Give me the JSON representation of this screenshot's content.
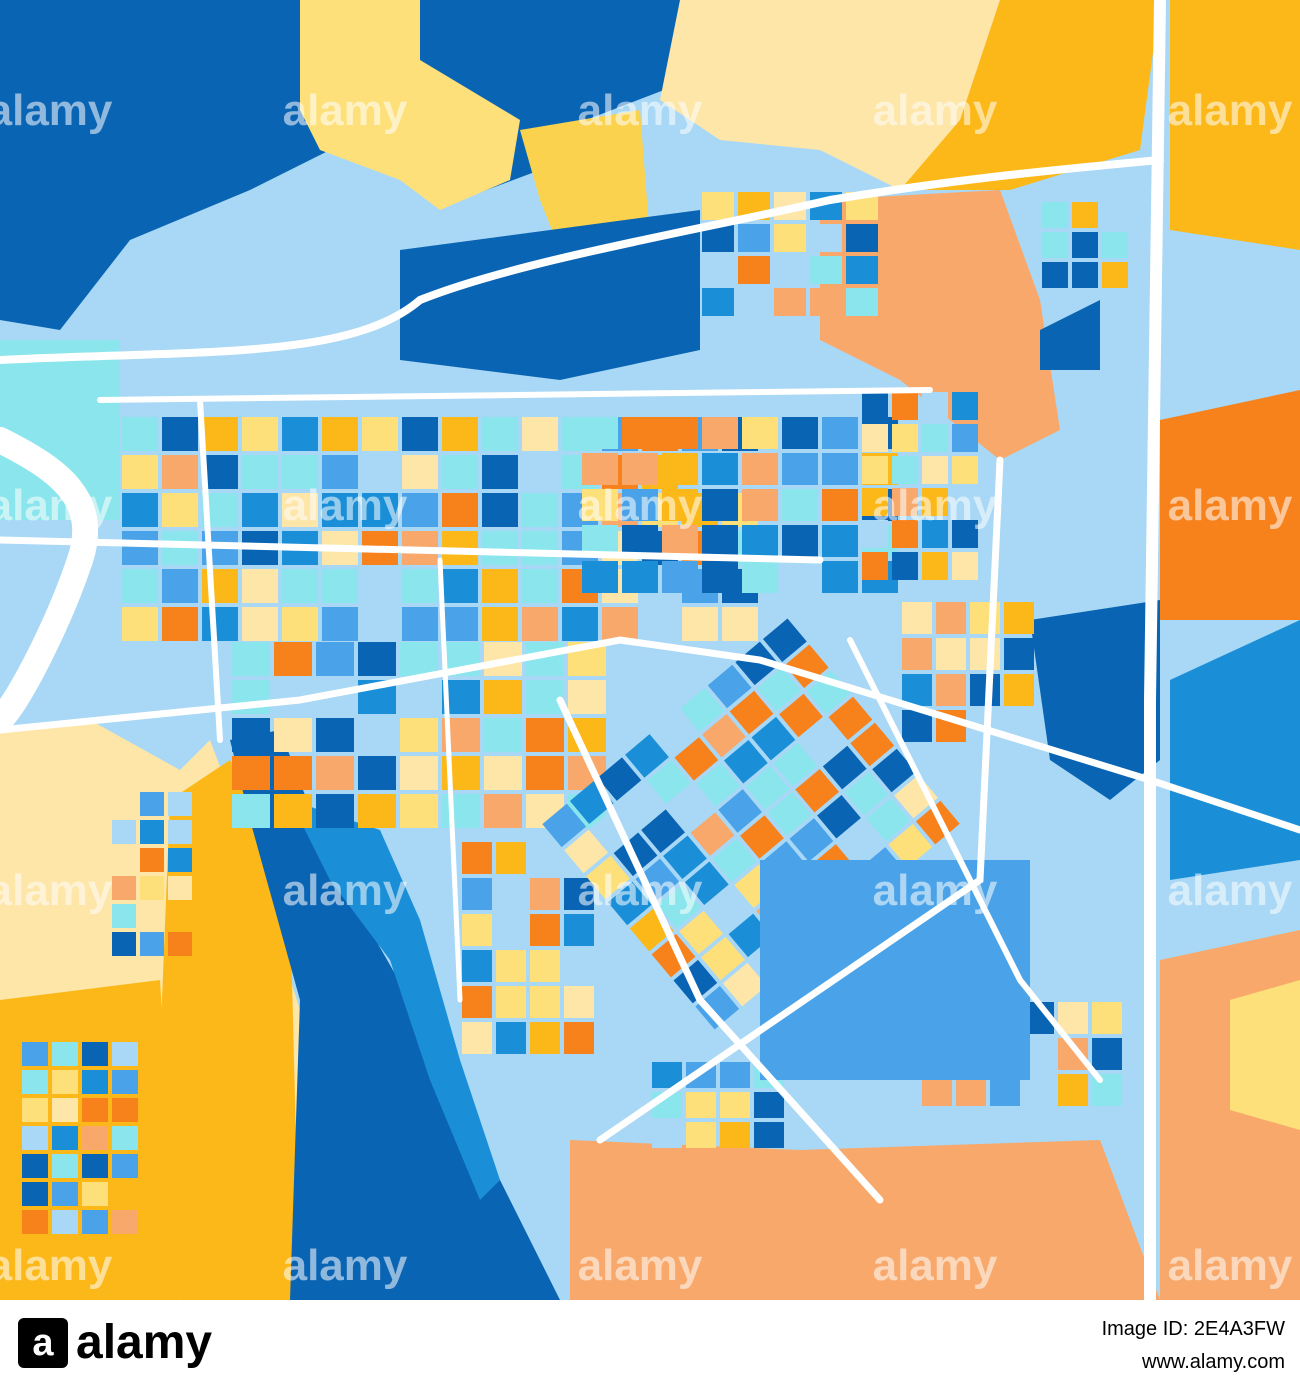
{
  "watermark": "alamy",
  "footer": {
    "logo": "alamy",
    "image_id": "Image ID: 2E4A3FW",
    "url": "www.alamy.com"
  }
}
